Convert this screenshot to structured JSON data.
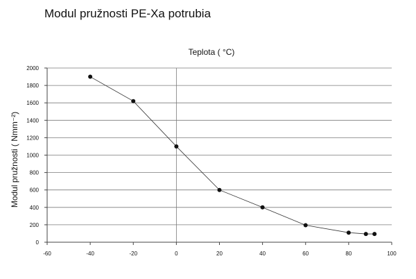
{
  "chart_data": {
    "type": "scatter",
    "title": "Modul pružnosti PE-Xa potrubia",
    "xlabel": "Teplota ( °C)",
    "ylabel": "Modul pružnosti ( Nmm⁻²)",
    "xlim": [
      -60,
      100
    ],
    "ylim": [
      0,
      2000
    ],
    "x_ticks": [
      -60,
      -40,
      -20,
      0,
      20,
      40,
      60,
      80,
      100
    ],
    "y_ticks": [
      0,
      200,
      400,
      600,
      800,
      1000,
      1200,
      1400,
      1600,
      1800,
      2000
    ],
    "grid": "horizontal",
    "connected": true,
    "series": [
      {
        "x": [
          -40,
          -20,
          0,
          20,
          40,
          60,
          80,
          88,
          92
        ],
        "y": [
          1900,
          1620,
          1100,
          600,
          400,
          195,
          110,
          95,
          95
        ]
      }
    ]
  }
}
